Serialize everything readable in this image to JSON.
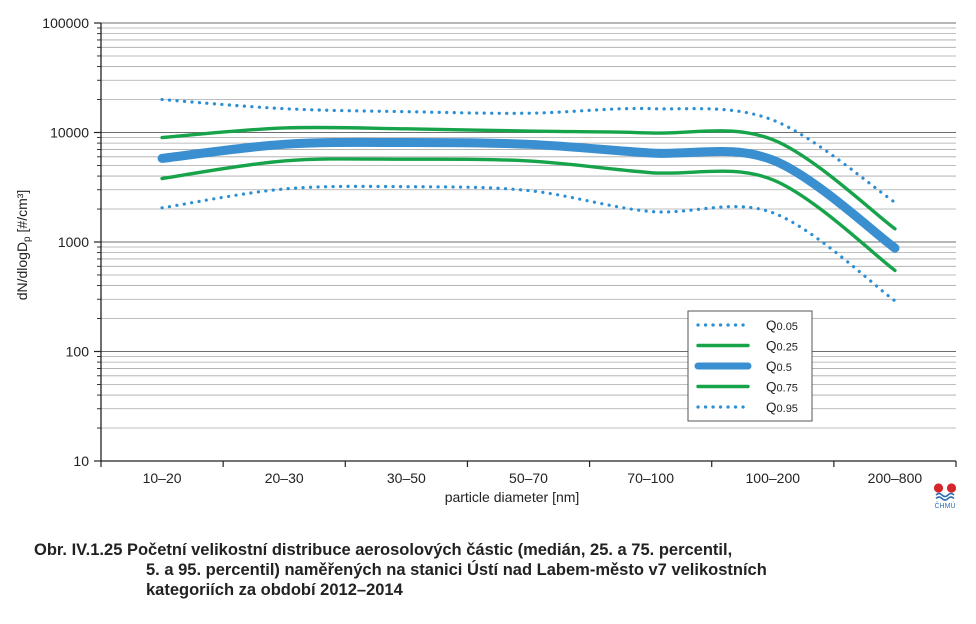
{
  "chart_data": {
    "type": "line",
    "xlabel": "particle diameter [nm]",
    "ylabel_main": "dN/dlogD",
    "ylabel_sub": "p",
    "ylabel_unit": "[#/cm³]",
    "yscale": "log",
    "ylim": [
      10,
      100000
    ],
    "y_ticks": [
      "10",
      "100",
      "1000",
      "10000",
      "100000"
    ],
    "categories": [
      "10–20",
      "20–30",
      "30–50",
      "50–70",
      "70–100",
      "100–200",
      "200–800"
    ],
    "grid": "horizontal, log minor",
    "legend_position": "lower-right",
    "series": [
      {
        "name": "Q0.05",
        "label_main": "Q",
        "label_sub": "0.05",
        "style": "dotted",
        "color": "#2a8fd4",
        "x": [
          0,
          1,
          2,
          3,
          4,
          5,
          6
        ],
        "values": [
          2050,
          3050,
          3200,
          2950,
          1900,
          1850,
          290
        ]
      },
      {
        "name": "Q0.25",
        "label_main": "Q",
        "label_sub": "0.25",
        "style": "solid",
        "color": "#16a34a",
        "x": [
          0,
          1,
          2,
          3,
          4,
          5,
          6
        ],
        "values": [
          3800,
          5500,
          5700,
          5500,
          4300,
          3700,
          550
        ]
      },
      {
        "name": "Q0.5",
        "label_main": "Q",
        "label_sub": "0.5",
        "style": "thick",
        "color": "#3a8fd0",
        "x": [
          0,
          1,
          2,
          3,
          4,
          5,
          6
        ],
        "values": [
          5800,
          7800,
          8100,
          7800,
          6500,
          5600,
          880
        ]
      },
      {
        "name": "Q0.75",
        "label_main": "Q",
        "label_sub": "0.75",
        "style": "solid",
        "color": "#16a34a",
        "x": [
          0,
          1,
          2,
          3,
          4,
          5,
          6
        ],
        "values": [
          9000,
          11000,
          10800,
          10300,
          9900,
          8600,
          1320
        ]
      },
      {
        "name": "Q0.95",
        "label_main": "Q",
        "label_sub": "0.95",
        "style": "dotted",
        "color": "#2a8fd4",
        "x": [
          0,
          1,
          2,
          3,
          4,
          5,
          6
        ],
        "values": [
          20000,
          16500,
          15500,
          15000,
          16500,
          13000,
          2300
        ]
      }
    ]
  },
  "logo": {
    "text": "ČHMÚ",
    "colors": [
      "#d7262b",
      "#2f6fb3"
    ]
  },
  "caption": {
    "line1": "Obr. IV.1.25  Početní velikostní distribuce aerosolových částic (medián, 25. a 75. percentil,",
    "line2": "5. a 95. percentil) naměřených na stanici Ústí nad Labem-město v7 velikostních",
    "line3": "kategoriích za období 2012–2014"
  }
}
